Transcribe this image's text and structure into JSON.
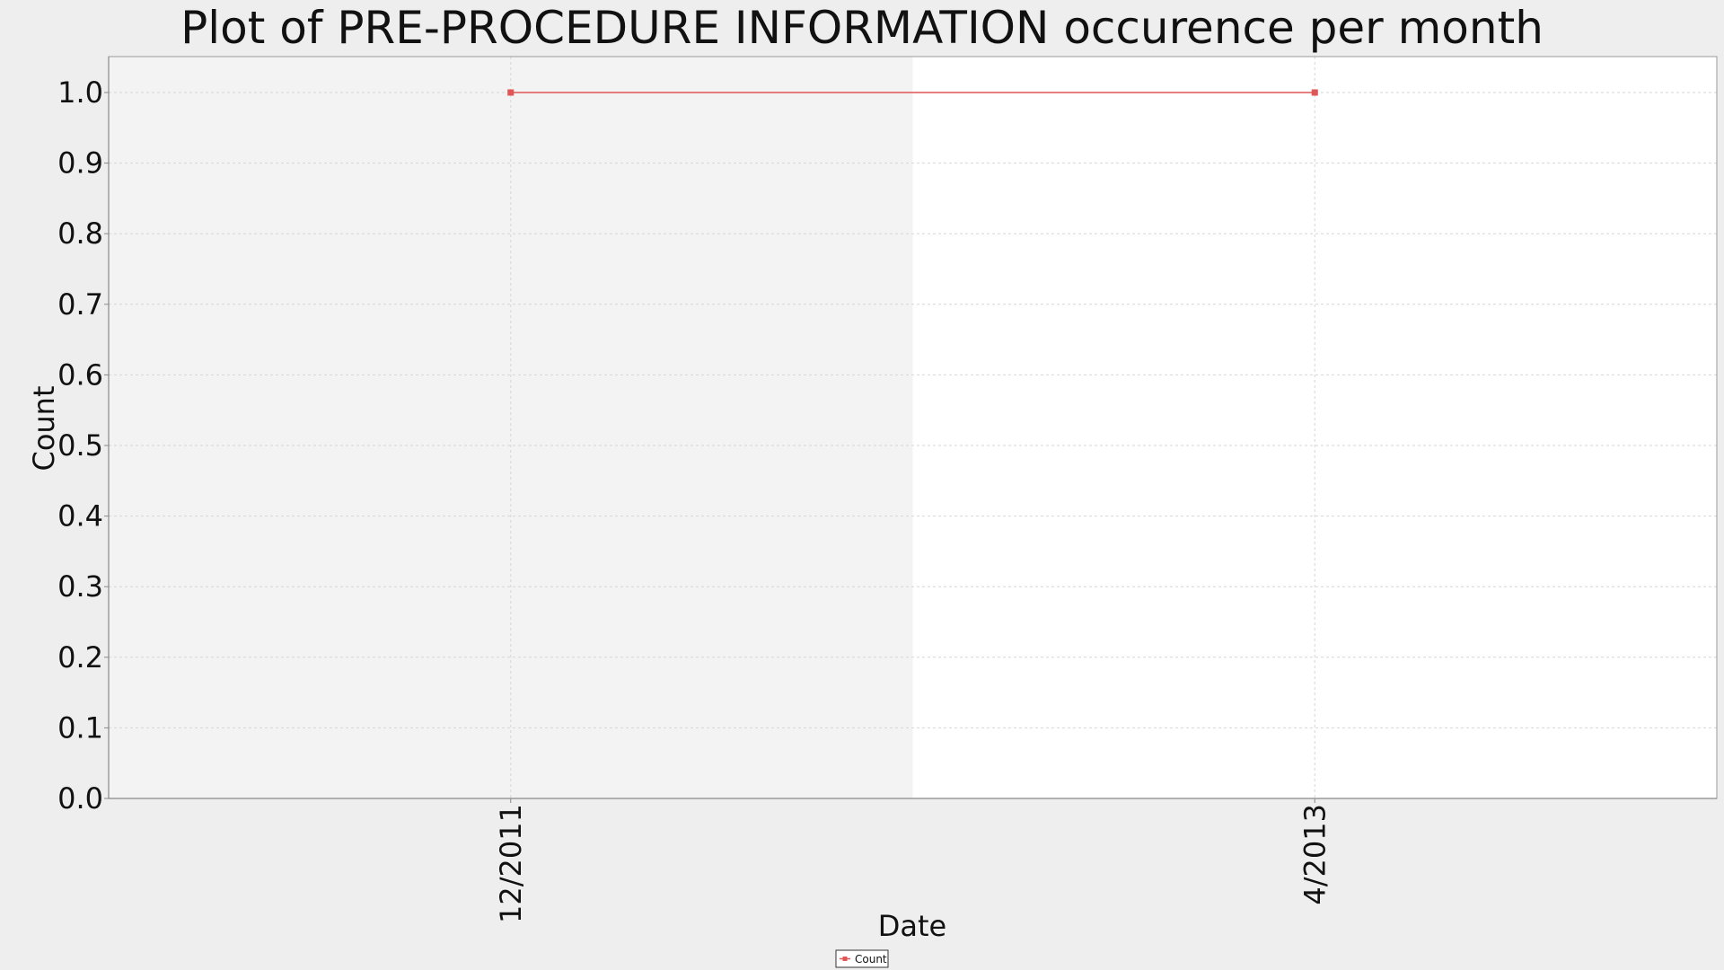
{
  "chart_data": {
    "type": "line",
    "title": "Plot of PRE-PROCEDURE INFORMATION occurence per month",
    "xlabel": "Date",
    "ylabel": "Count",
    "categories": [
      "12/2011",
      "4/2013"
    ],
    "series": [
      {
        "name": "Count",
        "values": [
          1.0,
          1.0
        ],
        "color": "#e05555"
      }
    ],
    "ylim": [
      0.0,
      1.0
    ],
    "yticks": [
      "0.0",
      "0.1",
      "0.2",
      "0.3",
      "0.4",
      "0.5",
      "0.6",
      "0.7",
      "0.8",
      "0.9",
      "1.0"
    ],
    "grid": true,
    "legend_position": "bottom-center",
    "colors": {
      "plot_band_shaded": "#f3f3f3",
      "plot_band_plain": "#ffffff",
      "background": "#eeeeee"
    }
  }
}
